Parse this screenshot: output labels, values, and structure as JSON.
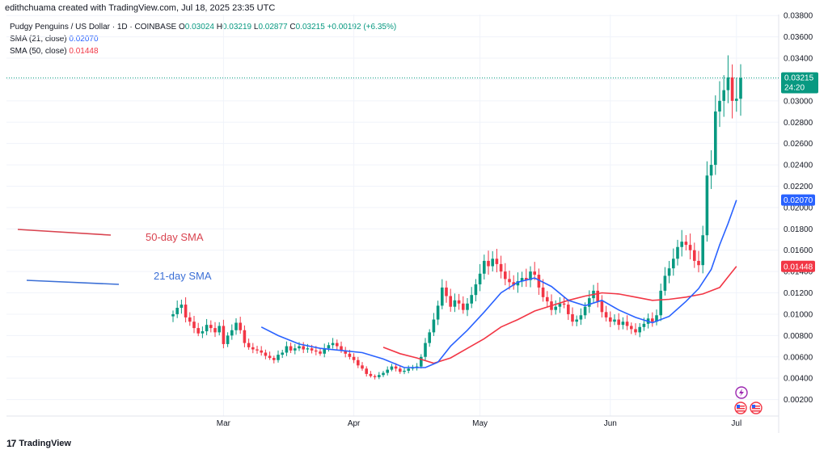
{
  "header": {
    "credit": "edithchuama created with TradingView.com, Jul 18, 2025 23:35 UTC"
  },
  "legend": {
    "symbol": "Pudgy Penguins / US Dollar · 1D · COINBASE",
    "o_label": "O",
    "o_value": "0.03024",
    "h_label": "H",
    "h_value": "0.03219",
    "l_label": "L",
    "l_value": "0.02877",
    "c_label": "C",
    "c_value": "0.03215",
    "change": "+0.00192 (+6.35%)",
    "sma21_label": "SMA (21, close)",
    "sma21_value": "0.02070",
    "sma50_label": "SMA (50, close)",
    "sma50_value": "0.01448"
  },
  "badges": {
    "price": "0.03215",
    "countdown": "24:20",
    "sma21": "0.02070",
    "sma50": "0.01448"
  },
  "annotations": {
    "sma50_text": "50-day SMA",
    "sma21_text": "21-day SMA"
  },
  "footer": {
    "brand": "TradingView"
  },
  "colors": {
    "up": "#089981",
    "down": "#f23645",
    "sma21": "#2962ff",
    "sma50": "#f23645",
    "annot50": "#d9434f",
    "annot21": "#3b6fd6"
  },
  "chart_data": {
    "type": "candlestick",
    "ylim": [
      0,
      0.039
    ],
    "y_ticks": [
      "0.00200",
      "0.00400",
      "0.00600",
      "0.00800",
      "0.01000",
      "0.01200",
      "0.01400",
      "0.01600",
      "0.01800",
      "0.02000",
      "0.02200",
      "0.02400",
      "0.02600",
      "0.02800",
      "0.03000",
      "0.03200",
      "0.03400",
      "0.03600",
      "0.03800"
    ],
    "x_ticks": [
      "Mar",
      "Apr",
      "May",
      "Jun",
      "Jul"
    ],
    "x_tick_dates": [
      "2025-03-01",
      "2025-04-01",
      "2025-05-01",
      "2025-06-01",
      "2025-07-01"
    ],
    "start_date": "2025-02-17",
    "closes": [
      0.01,
      0.0106,
      0.0109,
      0.0097,
      0.0093,
      0.0087,
      0.0082,
      0.0084,
      0.009,
      0.0087,
      0.0083,
      0.0089,
      0.0072,
      0.008,
      0.0085,
      0.0092,
      0.0085,
      0.0073,
      0.0069,
      0.0067,
      0.0066,
      0.0064,
      0.0061,
      0.0059,
      0.0057,
      0.0062,
      0.0064,
      0.007,
      0.0066,
      0.0068,
      0.007,
      0.0067,
      0.0068,
      0.0066,
      0.0065,
      0.0063,
      0.0068,
      0.0071,
      0.0073,
      0.007,
      0.0066,
      0.0063,
      0.006,
      0.0057,
      0.0052,
      0.0049,
      0.0044,
      0.0042,
      0.0041,
      0.0043,
      0.0045,
      0.0048,
      0.0051,
      0.0049,
      0.0046,
      0.0047,
      0.0049,
      0.005,
      0.0051,
      0.006,
      0.0073,
      0.0083,
      0.0095,
      0.0108,
      0.0125,
      0.0117,
      0.0107,
      0.0113,
      0.011,
      0.0104,
      0.011,
      0.0118,
      0.0128,
      0.0138,
      0.015,
      0.0145,
      0.0152,
      0.0147,
      0.014,
      0.0133,
      0.013,
      0.0127,
      0.0131,
      0.0134,
      0.0132,
      0.014,
      0.0137,
      0.0125,
      0.0116,
      0.0112,
      0.0104,
      0.0107,
      0.011,
      0.0109,
      0.01,
      0.0093,
      0.0095,
      0.0099,
      0.0107,
      0.0115,
      0.0122,
      0.0112,
      0.0102,
      0.0097,
      0.0093,
      0.0095,
      0.009,
      0.0093,
      0.0089,
      0.0086,
      0.0083,
      0.0088,
      0.0091,
      0.0096,
      0.0093,
      0.0099,
      0.0122,
      0.0136,
      0.0143,
      0.0152,
      0.0163,
      0.0168,
      0.0165,
      0.016,
      0.015,
      0.0146,
      0.0174,
      0.023,
      0.024,
      0.029,
      0.03,
      0.031,
      0.0322,
      0.03,
      0.0302,
      0.03215
    ],
    "sma21": [
      [
        21,
        0.0088
      ],
      [
        25,
        0.008
      ],
      [
        30,
        0.0072
      ],
      [
        35,
        0.0068
      ],
      [
        40,
        0.0066
      ],
      [
        45,
        0.0064
      ],
      [
        50,
        0.0058
      ],
      [
        55,
        0.005
      ],
      [
        60,
        0.005
      ],
      [
        63,
        0.0055
      ],
      [
        66,
        0.007
      ],
      [
        70,
        0.0085
      ],
      [
        74,
        0.0102
      ],
      [
        78,
        0.012
      ],
      [
        82,
        0.013
      ],
      [
        86,
        0.0134
      ],
      [
        90,
        0.0126
      ],
      [
        94,
        0.0113
      ],
      [
        98,
        0.0108
      ],
      [
        102,
        0.0113
      ],
      [
        106,
        0.0104
      ],
      [
        110,
        0.0097
      ],
      [
        114,
        0.0092
      ],
      [
        118,
        0.0098
      ],
      [
        122,
        0.0112
      ],
      [
        125,
        0.0124
      ],
      [
        128,
        0.0142
      ],
      [
        130,
        0.0165
      ],
      [
        132,
        0.0185
      ],
      [
        134,
        0.0207
      ]
    ],
    "sma50": [
      [
        50,
        0.0069
      ],
      [
        54,
        0.0063
      ],
      [
        58,
        0.0059
      ],
      [
        62,
        0.0054
      ],
      [
        66,
        0.0059
      ],
      [
        70,
        0.0068
      ],
      [
        74,
        0.0077
      ],
      [
        78,
        0.0088
      ],
      [
        82,
        0.0095
      ],
      [
        86,
        0.0103
      ],
      [
        90,
        0.0108
      ],
      [
        94,
        0.0113
      ],
      [
        98,
        0.0117
      ],
      [
        102,
        0.012
      ],
      [
        106,
        0.0119
      ],
      [
        110,
        0.0116
      ],
      [
        114,
        0.0113
      ],
      [
        118,
        0.0114
      ],
      [
        122,
        0.0116
      ],
      [
        126,
        0.0119
      ],
      [
        130,
        0.0125
      ],
      [
        132,
        0.0135
      ],
      [
        134,
        0.01448
      ]
    ]
  }
}
